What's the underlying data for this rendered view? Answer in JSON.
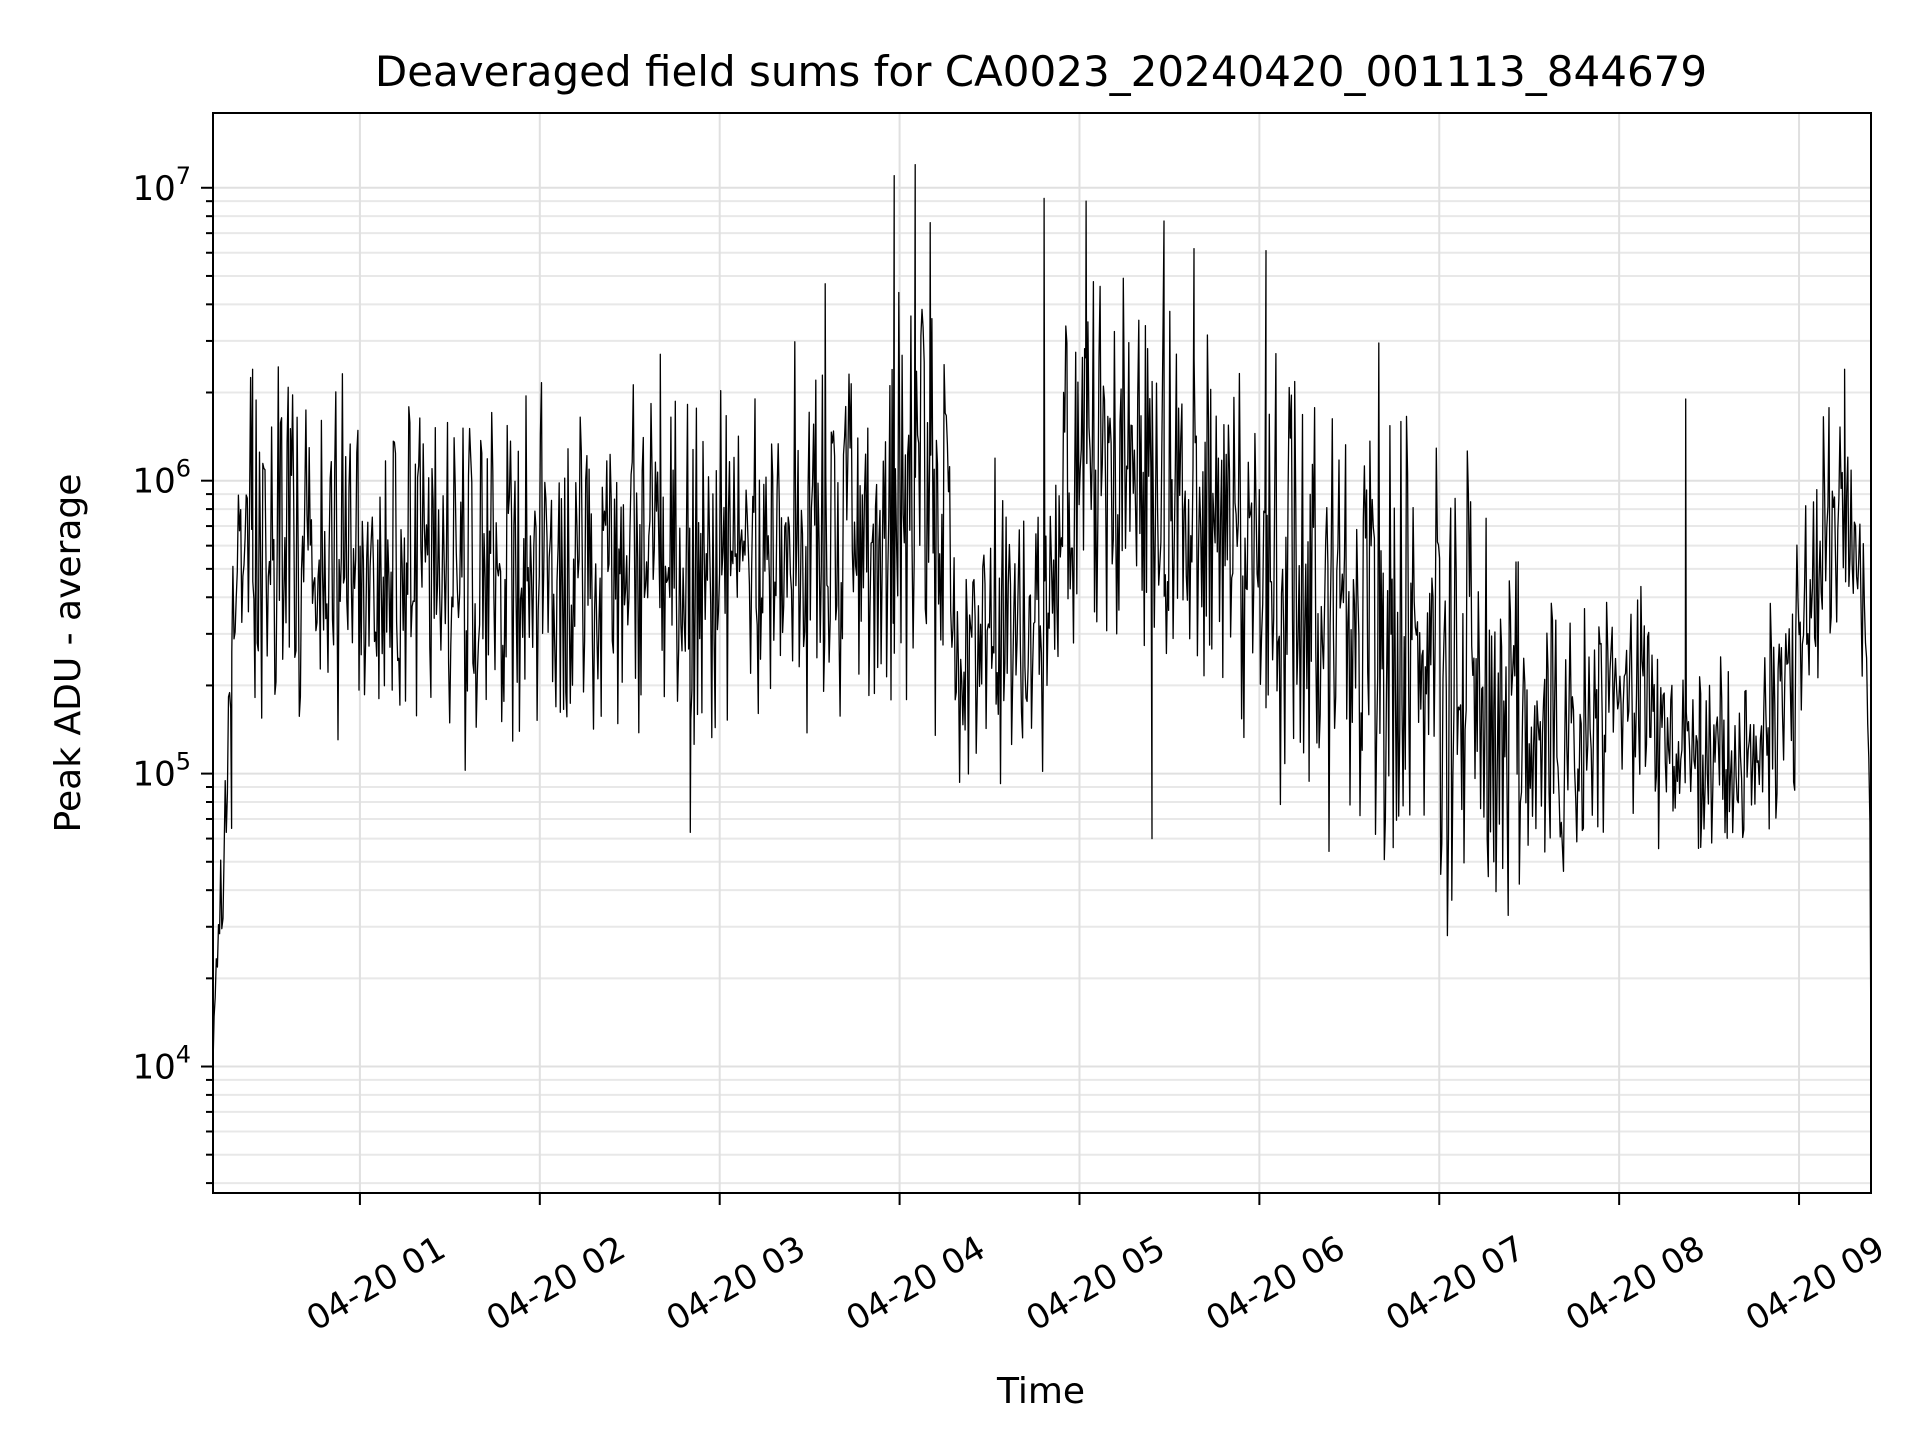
{
  "chart_data": {
    "type": "line",
    "title": "Deaveraged field sums for CA0023_20240420_001113_844679",
    "xlabel": "Time",
    "ylabel": "Peak ADU - average",
    "yscale": "log",
    "ylim": [
      3700,
      18000000
    ],
    "xlim": [
      "2024-04-20 00:11",
      "2024-04-20 09:24"
    ],
    "grid": true,
    "line_color": "#000000",
    "x_tick_labels": [
      "04-20 01",
      "04-20 02",
      "04-20 03",
      "04-20 04",
      "04-20 05",
      "04-20 06",
      "04-20 07",
      "04-20 08",
      "04-20 09"
    ],
    "x_ticks": [
      "2024-04-20 01:00",
      "2024-04-20 02:00",
      "2024-04-20 03:00",
      "2024-04-20 04:00",
      "2024-04-20 05:00",
      "2024-04-20 06:00",
      "2024-04-20 07:00",
      "2024-04-20 08:00",
      "2024-04-20 09:00"
    ],
    "y_ticks": [
      {
        "value": 10000,
        "base": "10",
        "exp": "4"
      },
      {
        "value": 100000,
        "base": "10",
        "exp": "5"
      },
      {
        "value": 1000000,
        "base": "10",
        "exp": "6"
      },
      {
        "value": 10000000,
        "base": "10",
        "exp": "7"
      }
    ],
    "series": [
      {
        "x": [
          "2024-04-20 00:11",
          "2024-04-20 00:13",
          "2024-04-20 00:15",
          "2024-04-20 00:18",
          "2024-04-20 00:21",
          "2024-04-20 00:25",
          "2024-04-20 00:30",
          "2024-04-20 00:35",
          "2024-04-20 00:40",
          "2024-04-20 00:45",
          "2024-04-20 00:50",
          "2024-04-20 00:55",
          "2024-04-20 01:00",
          "2024-04-20 01:10",
          "2024-04-20 01:20",
          "2024-04-20 01:30",
          "2024-04-20 01:40",
          "2024-04-20 01:50",
          "2024-04-20 02:00",
          "2024-04-20 02:10",
          "2024-04-20 02:20",
          "2024-04-20 02:30",
          "2024-04-20 02:40",
          "2024-04-20 02:50",
          "2024-04-20 03:00",
          "2024-04-20 03:10",
          "2024-04-20 03:20",
          "2024-04-20 03:30",
          "2024-04-20 03:40",
          "2024-04-20 03:50",
          "2024-04-20 04:00",
          "2024-04-20 04:05",
          "2024-04-20 04:10",
          "2024-04-20 04:15",
          "2024-04-20 04:20",
          "2024-04-20 04:30",
          "2024-04-20 04:40",
          "2024-04-20 04:50",
          "2024-04-20 05:00",
          "2024-04-20 05:10",
          "2024-04-20 05:20",
          "2024-04-20 05:30",
          "2024-04-20 05:40",
          "2024-04-20 05:50",
          "2024-04-20 06:00",
          "2024-04-20 06:10",
          "2024-04-20 06:20",
          "2024-04-20 06:30",
          "2024-04-20 06:40",
          "2024-04-20 06:50",
          "2024-04-20 07:00",
          "2024-04-20 07:10",
          "2024-04-20 07:20",
          "2024-04-20 07:30",
          "2024-04-20 07:40",
          "2024-04-20 07:50",
          "2024-04-20 08:00",
          "2024-04-20 08:10",
          "2024-04-20 08:20",
          "2024-04-20 08:30",
          "2024-04-20 08:40",
          "2024-04-20 08:50",
          "2024-04-20 09:00",
          "2024-04-20 09:10",
          "2024-04-20 09:20",
          "2024-04-20 09:24"
        ],
        "baseline": [
          10000,
          30000,
          60000,
          300000,
          600000,
          700000,
          600000,
          550000,
          550000,
          550000,
          550000,
          550000,
          550000,
          500000,
          500000,
          500000,
          500000,
          500000,
          500000,
          500000,
          500000,
          500000,
          500000,
          500000,
          550000,
          550000,
          600000,
          650000,
          700000,
          800000,
          900000,
          950000,
          1000000,
          900000,
          300000,
          300000,
          250000,
          300000,
          1000000,
          1200000,
          1100000,
          900000,
          700000,
          600000,
          600000,
          500000,
          400000,
          350000,
          350000,
          300000,
          250000,
          180000,
          150000,
          130000,
          130000,
          150000,
          180000,
          150000,
          120000,
          110000,
          110000,
          130000,
          250000,
          600000,
          600000,
          10000
        ],
        "spread_decades": [
          0.1,
          0.2,
          0.3,
          0.3,
          0.5,
          0.7,
          0.7,
          0.7,
          0.7,
          0.7,
          0.7,
          0.7,
          0.7,
          0.7,
          0.7,
          0.7,
          0.7,
          0.7,
          0.7,
          0.7,
          0.7,
          0.7,
          0.7,
          0.7,
          0.7,
          0.7,
          0.7,
          0.7,
          0.8,
          0.8,
          0.9,
          0.9,
          0.9,
          0.9,
          0.7,
          0.7,
          0.7,
          0.7,
          0.8,
          0.8,
          0.8,
          0.8,
          0.8,
          0.8,
          0.8,
          0.9,
          0.9,
          1.0,
          1.0,
          1.0,
          1.0,
          0.9,
          0.8,
          0.6,
          0.6,
          0.6,
          0.5,
          0.5,
          0.4,
          0.4,
          0.4,
          0.5,
          0.6,
          0.5,
          0.4,
          0.1
        ],
        "peaks": [
          {
            "x": "2024-04-20 00:24",
            "y": 2400000
          },
          {
            "x": "2024-04-20 02:40",
            "y": 2700000
          },
          {
            "x": "2024-04-20 03:35",
            "y": 4700000
          },
          {
            "x": "2024-04-20 03:58",
            "y": 11000000
          },
          {
            "x": "2024-04-20 04:05",
            "y": 12000000
          },
          {
            "x": "2024-04-20 04:10",
            "y": 7600000
          },
          {
            "x": "2024-04-20 04:48",
            "y": 9200000
          },
          {
            "x": "2024-04-20 05:02",
            "y": 9000000
          },
          {
            "x": "2024-04-20 05:28",
            "y": 7700000
          },
          {
            "x": "2024-04-20 05:38",
            "y": 6200000
          },
          {
            "x": "2024-04-20 06:02",
            "y": 6100000
          },
          {
            "x": "2024-04-20 08:22",
            "y": 1900000
          },
          {
            "x": "2024-04-20 09:15",
            "y": 2400000
          }
        ],
        "troughs": [
          {
            "x": "2024-04-20 00:17",
            "y": 65000
          },
          {
            "x": "2024-04-20 02:50",
            "y": 63000
          },
          {
            "x": "2024-04-20 05:24",
            "y": 60000
          },
          {
            "x": "2024-04-20 07:18",
            "y": 50000
          },
          {
            "x": "2024-04-20 07:35",
            "y": 54000
          },
          {
            "x": "2024-04-20 08:27",
            "y": 56000
          }
        ]
      }
    ]
  }
}
